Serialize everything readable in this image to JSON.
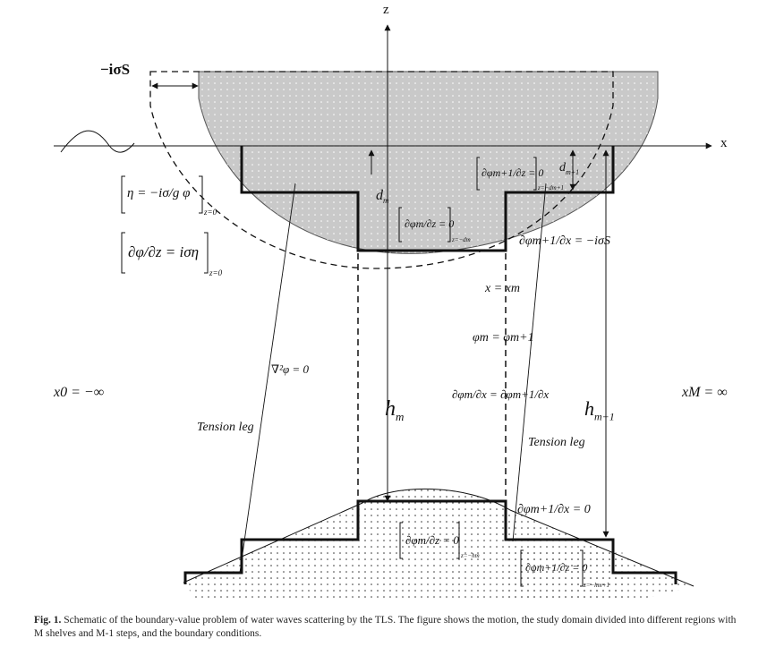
{
  "axes": {
    "z_label": "z",
    "x_label": "x"
  },
  "labels": {
    "surge": "−iσS",
    "bc_free1": "η = −iσ/g φ",
    "bc_free1_sub": "z=0",
    "bc_free2": "∂φ/∂z = iση",
    "bc_free2_sub": "z=0",
    "d_m": "d",
    "d_m_sub": "m",
    "d_m1": "d",
    "d_m1_sub": "m+1",
    "bc_hull_m": "∂φm/∂z = 0",
    "bc_hull_m_sub": "z=−dm",
    "bc_hull_m1": "∂φm+1/∂z = 0",
    "bc_hull_m1_sub": "z=−dm+1",
    "bc_side_m1": "∂φm+1/∂x = −iσS",
    "x_eq": "x = xm",
    "phi_eq": "φm = φm+1",
    "dphi_eq": "∂φm/∂x = ∂φm+1/∂x",
    "laplace": "∇²φ = 0",
    "x0": "x0 = −∞",
    "xM": "xM = ∞",
    "h_m": "h",
    "h_m_sub": "m",
    "h_m1": "h",
    "h_m1_sub": "m+1",
    "tension_left": "Tension leg",
    "tension_right": "Tension leg",
    "bc_step_m1": "∂φm+1/∂x = 0",
    "bc_bottom_m": "∂φm/∂z = 0",
    "bc_bottom_m_sub": "z=−hm",
    "bc_bottom_m1": "∂φm+1/∂z = 0",
    "bc_bottom_m1_sub": "z=−hm+1"
  },
  "caption": {
    "prefix": "Fig. 1.",
    "text": "Schematic of the boundary-value problem of water waves scattering by the TLS. The figure shows the motion, the study domain divided into different regions with M shelves and M-1 steps, and the boundary conditions."
  },
  "colors": {
    "hull_fill": "#c9c9c9",
    "line": "#111111"
  }
}
